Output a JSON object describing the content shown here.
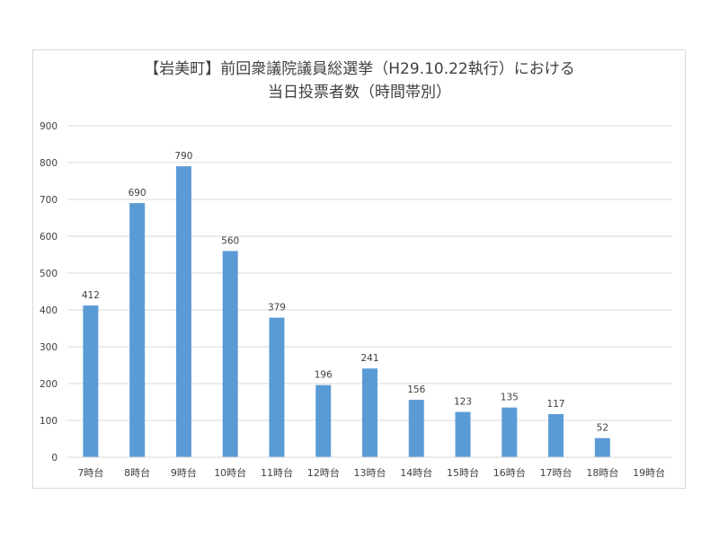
{
  "chart_data": {
    "type": "bar",
    "title_line1": "【岩美町】前回衆議院議員総選挙（H29.10.22執行）における",
    "title_line2": "当日投票者数（時間帯別）",
    "categories": [
      "7時台",
      "8時台",
      "9時台",
      "10時台",
      "11時台",
      "12時台",
      "13時台",
      "14時台",
      "15時台",
      "16時台",
      "17時台",
      "18時台",
      "19時台"
    ],
    "values": [
      412,
      690,
      790,
      560,
      379,
      196,
      241,
      156,
      123,
      135,
      117,
      52,
      null
    ],
    "ylim": [
      0,
      900
    ],
    "yticks": [
      0,
      100,
      200,
      300,
      400,
      500,
      600,
      700,
      800,
      900
    ],
    "grid": true,
    "bar_color": "#5b9bd5",
    "grid_color": "#d9d9d9"
  }
}
